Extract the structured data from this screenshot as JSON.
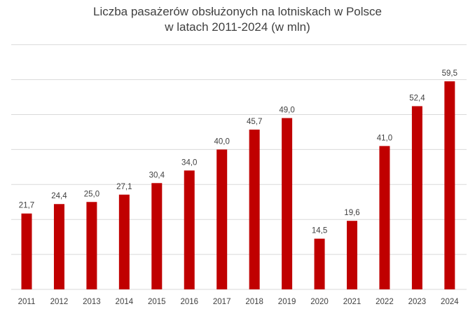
{
  "chart_data": {
    "type": "bar",
    "title_lines": [
      "Liczba pasażerów obsłużonych  na lotniskach w Polsce",
      "w latach 2011-2024 (w mln)"
    ],
    "categories": [
      "2011",
      "2012",
      "2013",
      "2014",
      "2015",
      "2016",
      "2017",
      "2018",
      "2019",
      "2020",
      "2021",
      "2022",
      "2023",
      "2024"
    ],
    "values": [
      21.7,
      24.4,
      25.0,
      27.1,
      30.4,
      34.0,
      40.0,
      45.7,
      49.0,
      14.5,
      19.6,
      41.0,
      52.4,
      59.5
    ],
    "value_labels": [
      "21,7",
      "24,4",
      "25,0",
      "27,1",
      "30,4",
      "34,0",
      "40,0",
      "45,7",
      "49,0",
      "14,5",
      "19,6",
      "41,0",
      "52,4",
      "59,5"
    ],
    "xlabel": "",
    "ylabel": "",
    "ylim": [
      0,
      70
    ],
    "y_gridline_step": 10,
    "y_tick_labels_shown": false,
    "grid": true,
    "legend": "none",
    "colors": {
      "bar": "#C00000",
      "grid": "#D9D9D9",
      "text": "#404040"
    }
  }
}
